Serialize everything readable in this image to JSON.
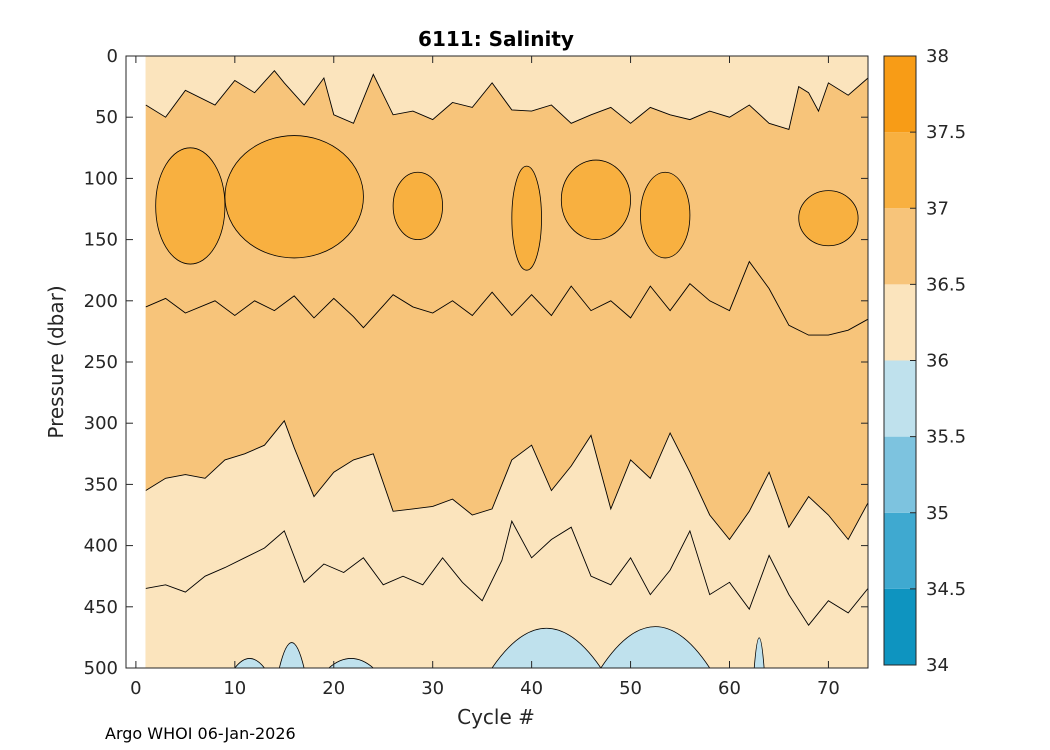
{
  "chart_data": {
    "type": "filled-contour",
    "title": "6111:  Salinity",
    "xlabel": "Cycle #",
    "ylabel": "Pressure (dbar)",
    "xlim": [
      -1,
      74
    ],
    "ylim": [
      500,
      0
    ],
    "x_data_range": [
      1,
      74
    ],
    "xticks": [
      0,
      10,
      20,
      30,
      40,
      50,
      60,
      70
    ],
    "yticks": [
      0,
      50,
      100,
      150,
      200,
      250,
      300,
      350,
      400,
      450,
      500
    ],
    "colorbar": {
      "ticks": [
        "34",
        "34.5",
        "35",
        "35.5",
        "36",
        "36.5",
        "37",
        "37.5",
        "38"
      ],
      "levels": [
        34,
        34.5,
        35,
        35.5,
        36,
        36.5,
        37,
        37.5,
        38
      ],
      "colors": [
        "#0e94c0",
        "#3fa9d0",
        "#7dc3df",
        "#bfe1ed",
        "#fbe4bd",
        "#f7c47a",
        "#f8b040",
        "#f89c16"
      ]
    },
    "contours": [
      {
        "name": "36.5 upper",
        "level": 36.5,
        "x": [
          1,
          3,
          5,
          8,
          10,
          12,
          14,
          15,
          17,
          19,
          20,
          22,
          24,
          26,
          28,
          30,
          32,
          34,
          36,
          38,
          40,
          42,
          44,
          46,
          48,
          50,
          52,
          54,
          56,
          58,
          60,
          62,
          64,
          66,
          67,
          68,
          69,
          70,
          72,
          74
        ],
        "y": [
          40,
          50,
          28,
          40,
          20,
          30,
          12,
          22,
          40,
          18,
          48,
          55,
          15,
          48,
          45,
          52,
          38,
          42,
          22,
          44,
          45,
          40,
          55,
          48,
          42,
          55,
          42,
          48,
          52,
          45,
          50,
          40,
          55,
          60,
          25,
          30,
          45,
          22,
          32,
          18
        ]
      },
      {
        "name": "37 band top",
        "level": 37,
        "x": [
          1,
          3,
          5,
          8,
          10,
          12,
          14,
          16,
          18,
          20,
          22,
          23,
          26,
          28,
          30,
          32,
          34,
          36,
          38,
          40,
          42,
          44,
          46,
          48,
          50,
          52,
          54,
          56,
          58,
          60,
          62,
          64,
          66,
          68,
          70,
          72,
          74
        ],
        "y": [
          205,
          198,
          210,
          200,
          212,
          200,
          208,
          196,
          214,
          198,
          213,
          222,
          195,
          205,
          210,
          200,
          212,
          193,
          212,
          195,
          212,
          188,
          208,
          200,
          214,
          188,
          208,
          186,
          200,
          208,
          168,
          190,
          220,
          228,
          228,
          224,
          215
        ]
      },
      {
        "name": "36.5 middle",
        "level": 36.5,
        "x": [
          1,
          3,
          5,
          7,
          9,
          11,
          13,
          15,
          16,
          18,
          20,
          22,
          24,
          26,
          28,
          30,
          32,
          34,
          36,
          38,
          40,
          42,
          44,
          46,
          48,
          50,
          52,
          54,
          56,
          58,
          60,
          62,
          64,
          66,
          68,
          70,
          72,
          74
        ],
        "y": [
          355,
          345,
          342,
          345,
          330,
          325,
          318,
          298,
          320,
          360,
          340,
          330,
          325,
          372,
          370,
          368,
          362,
          375,
          370,
          330,
          318,
          355,
          335,
          310,
          370,
          330,
          345,
          308,
          340,
          375,
          395,
          372,
          340,
          385,
          360,
          375,
          395,
          365
        ]
      },
      {
        "name": "36.0 band",
        "level": 36,
        "x": [
          1,
          3,
          5,
          7,
          9,
          11,
          13,
          15,
          17,
          19,
          21,
          23,
          25,
          27,
          29,
          31,
          33,
          35,
          37,
          38,
          40,
          42,
          44,
          46,
          48,
          50,
          52,
          54,
          56,
          58,
          60,
          62,
          64,
          66,
          68,
          70,
          72,
          74
        ],
        "y": [
          435,
          432,
          438,
          425,
          418,
          410,
          402,
          388,
          430,
          415,
          422,
          410,
          432,
          425,
          432,
          410,
          430,
          445,
          412,
          380,
          410,
          395,
          385,
          425,
          432,
          410,
          440,
          420,
          388,
          440,
          430,
          452,
          408,
          440,
          465,
          445,
          455,
          435
        ]
      }
    ],
    "low_salinity_patches": [
      {
        "level": 35.5,
        "x": [
          10,
          13
        ],
        "y_top": 488
      },
      {
        "level": 35.5,
        "x": [
          14.5,
          17
        ],
        "y_top": 468
      },
      {
        "level": 35.5,
        "x": [
          19.5,
          24
        ],
        "y_top": 488
      },
      {
        "level": 35.5,
        "x": [
          36,
          47
        ],
        "y_top": 450
      },
      {
        "level": 35.5,
        "x": [
          47,
          58
        ],
        "y_top": 448
      },
      {
        "level": 35.5,
        "x": [
          62.5,
          63.5
        ],
        "y_top": 462
      }
    ]
  },
  "footer": "Argo WHOI 06-Jan-2026"
}
